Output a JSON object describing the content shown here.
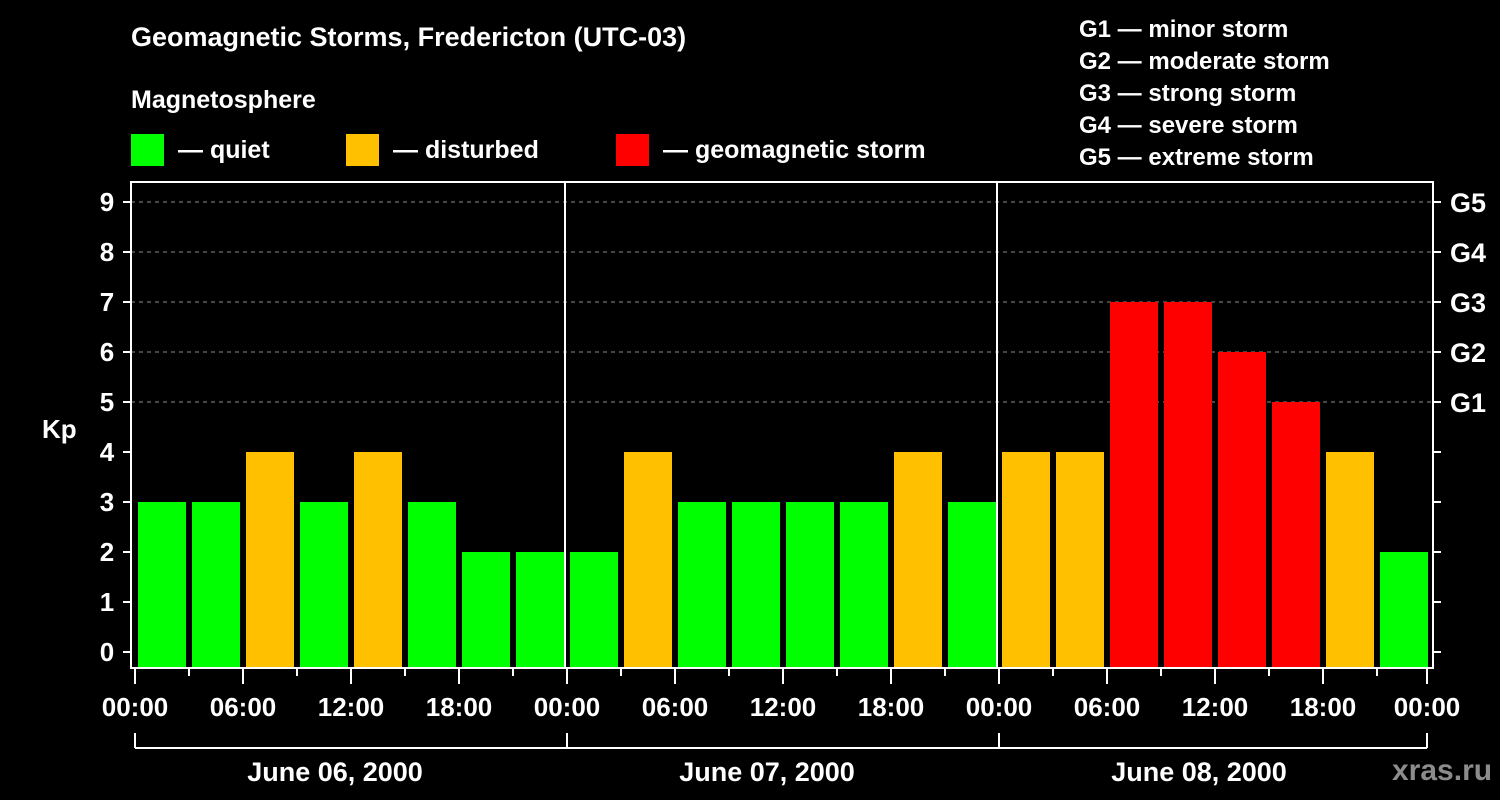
{
  "header": {
    "title": "Geomagnetic Storms, Fredericton (UTC-03)",
    "subtitle": "Magnetosphere"
  },
  "legend": [
    {
      "label": "— quiet",
      "color": "#00ff00"
    },
    {
      "label": "— disturbed",
      "color": "#ffc000"
    },
    {
      "label": "— geomagnetic storm",
      "color": "#ff0000"
    }
  ],
  "storm_scale": [
    "G1 — minor storm",
    "G2 — moderate storm",
    "G3 — strong storm",
    "G4 — severe storm",
    "G5 — extreme storm"
  ],
  "watermark": "xras.ru",
  "chart_data": {
    "type": "bar",
    "title": "Geomagnetic Storms, Fredericton (UTC-03)",
    "subtitle": "Magnetosphere",
    "xlabel": "",
    "ylabel": "Kp",
    "ylim": [
      0,
      9
    ],
    "yticks": [
      0,
      1,
      2,
      3,
      4,
      5,
      6,
      7,
      8,
      9
    ],
    "right_axis_labels": [
      {
        "kp": 5,
        "label": "G1"
      },
      {
        "kp": 6,
        "label": "G2"
      },
      {
        "kp": 7,
        "label": "G3"
      },
      {
        "kp": 8,
        "label": "G4"
      },
      {
        "kp": 9,
        "label": "G5"
      }
    ],
    "grid": "dashed horizontal lines at Kp 5-9",
    "xtick_labels": [
      "00:00",
      "06:00",
      "12:00",
      "18:00",
      "00:00",
      "06:00",
      "12:00",
      "18:00",
      "00:00",
      "06:00",
      "12:00",
      "18:00",
      "00:00"
    ],
    "days": [
      "June 06, 2000",
      "June 07, 2000",
      "June 08, 2000"
    ],
    "categories": [
      "06 00:00",
      "06 03:00",
      "06 06:00",
      "06 09:00",
      "06 12:00",
      "06 15:00",
      "06 18:00",
      "06 21:00",
      "07 00:00",
      "07 03:00",
      "07 06:00",
      "07 09:00",
      "07 12:00",
      "07 15:00",
      "07 18:00",
      "07 21:00",
      "08 00:00",
      "08 03:00",
      "08 06:00",
      "08 09:00",
      "08 12:00",
      "08 15:00",
      "08 18:00",
      "08 21:00"
    ],
    "values": [
      3,
      3,
      4,
      3,
      4,
      3,
      2,
      2,
      2,
      4,
      3,
      3,
      3,
      3,
      4,
      3,
      4,
      4,
      7,
      7,
      6,
      5,
      4,
      2
    ],
    "status": [
      "quiet",
      "quiet",
      "disturbed",
      "quiet",
      "disturbed",
      "quiet",
      "quiet",
      "quiet",
      "quiet",
      "disturbed",
      "quiet",
      "quiet",
      "quiet",
      "quiet",
      "disturbed",
      "quiet",
      "disturbed",
      "disturbed",
      "storm",
      "storm",
      "storm",
      "storm",
      "disturbed",
      "quiet"
    ],
    "colors": {
      "quiet": "#00ff00",
      "disturbed": "#ffc000",
      "storm": "#ff0000"
    },
    "legend_position": "top"
  }
}
